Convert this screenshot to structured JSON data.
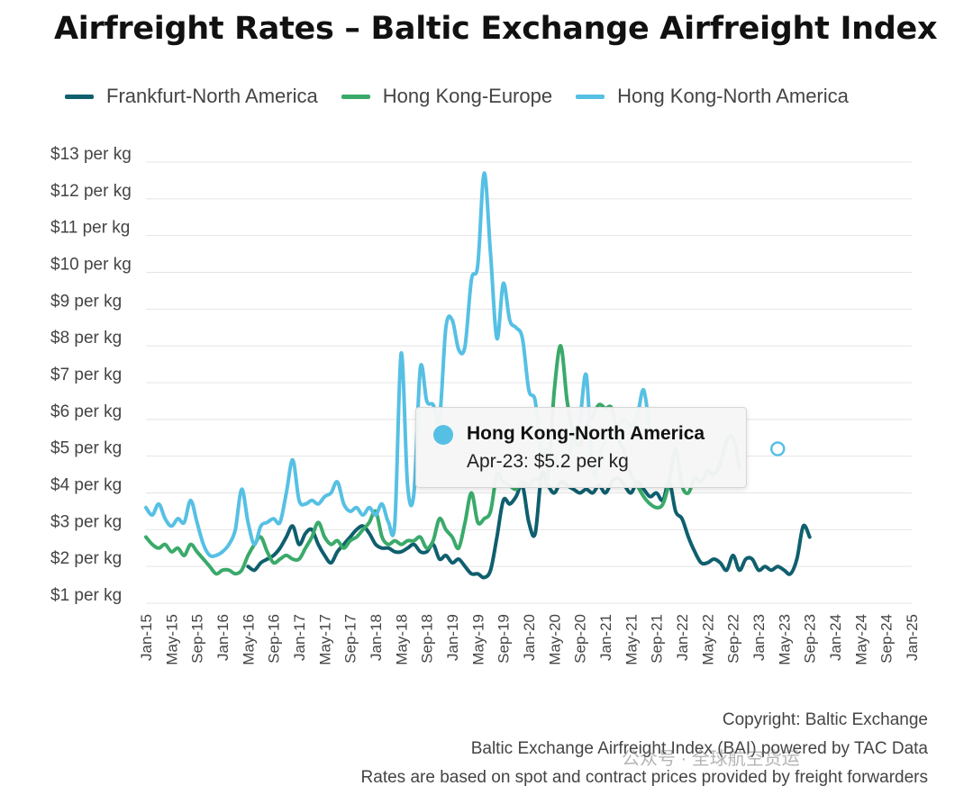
{
  "chart_data": {
    "type": "line",
    "title": "Airfreight Rates – Baltic Exchange Airfreight Index",
    "xlabel": "",
    "ylabel": "",
    "ylim": [
      1,
      13
    ],
    "y_tick_labels": [
      "$1 per kg",
      "$2 per kg",
      "$3 per kg",
      "$4 per kg",
      "$5 per kg",
      "$6 per kg",
      "$7 per kg",
      "$8 per kg",
      "$9 per kg",
      "$10 per kg",
      "$11 per kg",
      "$12 per kg",
      "$13 per kg"
    ],
    "x_tick_labels": [
      "Jan-15",
      "May-15",
      "Sep-15",
      "Jan-16",
      "May-16",
      "Sep-16",
      "Jan-17",
      "May-17",
      "Sep-17",
      "Jan-18",
      "May-18",
      "Sep-18",
      "Jan-19",
      "May-19",
      "Sep-19",
      "Jan-20",
      "May-20",
      "Sep-20",
      "Jan-21",
      "May-21",
      "Sep-21",
      "Jan-22",
      "May-22",
      "Sep-22",
      "Jan-23",
      "May-23",
      "Sep-23",
      "Jan-24",
      "May-24",
      "Sep-24",
      "Jan-25"
    ],
    "grid": true,
    "legend_position": "top",
    "series": [
      {
        "name": "Frankfurt-North America",
        "color": "#0f5f6e",
        "values": [
          [
            16,
            2.0
          ],
          [
            17,
            1.9
          ],
          [
            18,
            2.1
          ],
          [
            19,
            2.2
          ],
          [
            20,
            2.3
          ],
          [
            21,
            2.5
          ],
          [
            22,
            2.8
          ],
          [
            23,
            3.1
          ],
          [
            24,
            2.6
          ],
          [
            25,
            2.9
          ],
          [
            26,
            3.0
          ],
          [
            27,
            2.6
          ],
          [
            28,
            2.3
          ],
          [
            29,
            2.1
          ],
          [
            30,
            2.4
          ],
          [
            31,
            2.6
          ],
          [
            32,
            2.8
          ],
          [
            33,
            3.0
          ],
          [
            34,
            3.1
          ],
          [
            35,
            2.9
          ],
          [
            36,
            2.6
          ],
          [
            37,
            2.5
          ],
          [
            38,
            2.5
          ],
          [
            39,
            2.4
          ],
          [
            40,
            2.4
          ],
          [
            41,
            2.5
          ],
          [
            42,
            2.6
          ],
          [
            43,
            2.4
          ],
          [
            44,
            2.4
          ],
          [
            45,
            2.6
          ],
          [
            46,
            2.2
          ],
          [
            47,
            2.3
          ],
          [
            48,
            2.1
          ],
          [
            49,
            2.2
          ],
          [
            50,
            2.0
          ],
          [
            51,
            1.8
          ],
          [
            52,
            1.8
          ],
          [
            53,
            1.7
          ],
          [
            54,
            1.9
          ],
          [
            55,
            2.8
          ],
          [
            56,
            3.8
          ],
          [
            57,
            3.7
          ],
          [
            58,
            3.9
          ],
          [
            59,
            4.2
          ],
          [
            60,
            3.2
          ],
          [
            61,
            2.9
          ],
          [
            62,
            4.5
          ],
          [
            63,
            4.2
          ],
          [
            64,
            4.0
          ],
          [
            65,
            4.3
          ],
          [
            66,
            4.2
          ],
          [
            67,
            4.1
          ],
          [
            68,
            4.0
          ],
          [
            69,
            4.1
          ],
          [
            70,
            4.0
          ],
          [
            71,
            4.2
          ],
          [
            72,
            4.0
          ],
          [
            73,
            4.3
          ],
          [
            74,
            4.4
          ],
          [
            75,
            4.2
          ],
          [
            76,
            4.0
          ],
          [
            77,
            4.3
          ],
          [
            78,
            4.1
          ],
          [
            79,
            3.9
          ],
          [
            80,
            4.0
          ],
          [
            81,
            3.8
          ],
          [
            82,
            4.3
          ],
          [
            83,
            3.5
          ],
          [
            84,
            3.3
          ],
          [
            85,
            2.8
          ],
          [
            86,
            2.4
          ],
          [
            87,
            2.1
          ],
          [
            88,
            2.1
          ],
          [
            89,
            2.2
          ],
          [
            90,
            2.1
          ],
          [
            91,
            1.9
          ],
          [
            92,
            2.3
          ],
          [
            93,
            1.9
          ],
          [
            94,
            2.2
          ],
          [
            95,
            2.2
          ],
          [
            96,
            1.9
          ],
          [
            97,
            2.0
          ],
          [
            98,
            1.9
          ],
          [
            99,
            2.0
          ],
          [
            100,
            1.9
          ],
          [
            101,
            1.8
          ],
          [
            102,
            2.2
          ],
          [
            103,
            3.1
          ],
          [
            104,
            2.8
          ]
        ]
      },
      {
        "name": "Hong Kong-Europe",
        "color": "#3aaa6a",
        "values": [
          [
            0,
            2.8
          ],
          [
            1,
            2.6
          ],
          [
            2,
            2.5
          ],
          [
            3,
            2.6
          ],
          [
            4,
            2.4
          ],
          [
            5,
            2.5
          ],
          [
            6,
            2.3
          ],
          [
            7,
            2.6
          ],
          [
            8,
            2.4
          ],
          [
            9,
            2.2
          ],
          [
            10,
            2.0
          ],
          [
            11,
            1.8
          ],
          [
            12,
            1.9
          ],
          [
            13,
            1.9
          ],
          [
            14,
            1.8
          ],
          [
            15,
            1.9
          ],
          [
            16,
            2.3
          ],
          [
            17,
            2.6
          ],
          [
            18,
            2.8
          ],
          [
            19,
            2.4
          ],
          [
            20,
            2.1
          ],
          [
            21,
            2.2
          ],
          [
            22,
            2.3
          ],
          [
            23,
            2.2
          ],
          [
            24,
            2.2
          ],
          [
            25,
            2.5
          ],
          [
            26,
            2.8
          ],
          [
            27,
            3.2
          ],
          [
            28,
            2.8
          ],
          [
            29,
            2.6
          ],
          [
            30,
            2.7
          ],
          [
            31,
            2.5
          ],
          [
            32,
            2.7
          ],
          [
            33,
            2.8
          ],
          [
            34,
            3.0
          ],
          [
            35,
            3.2
          ],
          [
            36,
            3.5
          ],
          [
            37,
            2.8
          ],
          [
            38,
            2.6
          ],
          [
            39,
            2.7
          ],
          [
            40,
            2.6
          ],
          [
            41,
            2.7
          ],
          [
            42,
            2.7
          ],
          [
            43,
            2.8
          ],
          [
            44,
            2.5
          ],
          [
            45,
            2.7
          ],
          [
            46,
            3.3
          ],
          [
            47,
            3.0
          ],
          [
            48,
            2.8
          ],
          [
            49,
            2.5
          ],
          [
            50,
            3.2
          ],
          [
            51,
            4.0
          ],
          [
            52,
            3.2
          ],
          [
            53,
            3.3
          ],
          [
            54,
            3.5
          ],
          [
            55,
            4.5
          ],
          [
            56,
            4.3
          ],
          [
            57,
            4.2
          ],
          [
            58,
            4.1
          ],
          [
            59,
            4.3
          ],
          [
            60,
            4.2
          ],
          [
            61,
            4.4
          ],
          [
            62,
            4.3
          ],
          [
            63,
            4.5
          ],
          [
            64,
            6.8
          ],
          [
            65,
            8.0
          ],
          [
            66,
            6.5
          ],
          [
            67,
            5.6
          ],
          [
            68,
            5.3
          ],
          [
            69,
            5.8
          ],
          [
            70,
            6.1
          ],
          [
            71,
            6.4
          ],
          [
            72,
            6.3
          ],
          [
            73,
            6.3
          ],
          [
            74,
            5.5
          ],
          [
            75,
            5.1
          ],
          [
            76,
            4.5
          ],
          [
            77,
            4.2
          ],
          [
            78,
            3.9
          ],
          [
            79,
            3.7
          ],
          [
            80,
            3.6
          ],
          [
            81,
            3.7
          ],
          [
            82,
            4.3
          ],
          [
            83,
            5.2
          ],
          [
            84,
            4.2
          ],
          [
            85,
            4.0
          ],
          [
            86,
            4.4
          ],
          [
            87,
            4.3
          ],
          [
            88,
            4.6
          ],
          [
            89,
            4.5
          ],
          [
            90,
            4.8
          ],
          [
            91,
            5.4
          ],
          [
            92,
            5.5
          ],
          [
            93,
            4.7
          ]
        ]
      },
      {
        "name": "Hong Kong-North America",
        "color": "#56c0e4",
        "values": [
          [
            0,
            3.6
          ],
          [
            1,
            3.4
          ],
          [
            2,
            3.7
          ],
          [
            3,
            3.3
          ],
          [
            4,
            3.1
          ],
          [
            5,
            3.3
          ],
          [
            6,
            3.2
          ],
          [
            7,
            3.8
          ],
          [
            8,
            3.2
          ],
          [
            9,
            2.6
          ],
          [
            10,
            2.3
          ],
          [
            11,
            2.3
          ],
          [
            12,
            2.4
          ],
          [
            13,
            2.6
          ],
          [
            14,
            3.0
          ],
          [
            15,
            4.1
          ],
          [
            16,
            3.2
          ],
          [
            17,
            2.6
          ],
          [
            18,
            3.1
          ],
          [
            19,
            3.2
          ],
          [
            20,
            3.3
          ],
          [
            21,
            3.2
          ],
          [
            22,
            4.0
          ],
          [
            23,
            4.9
          ],
          [
            24,
            3.8
          ],
          [
            25,
            3.7
          ],
          [
            26,
            3.8
          ],
          [
            27,
            3.7
          ],
          [
            28,
            3.9
          ],
          [
            29,
            4.0
          ],
          [
            30,
            4.3
          ],
          [
            31,
            3.7
          ],
          [
            32,
            3.5
          ],
          [
            33,
            3.6
          ],
          [
            34,
            3.4
          ],
          [
            35,
            3.6
          ],
          [
            36,
            3.4
          ],
          [
            37,
            3.7
          ],
          [
            38,
            3.2
          ],
          [
            39,
            3.2
          ],
          [
            40,
            7.8
          ],
          [
            41,
            4.2
          ],
          [
            42,
            4.0
          ],
          [
            43,
            7.4
          ],
          [
            44,
            6.5
          ],
          [
            45,
            6.4
          ],
          [
            46,
            6.0
          ],
          [
            47,
            8.5
          ],
          [
            48,
            8.7
          ],
          [
            49,
            7.9
          ],
          [
            50,
            8.0
          ],
          [
            51,
            9.8
          ],
          [
            52,
            10.2
          ],
          [
            53,
            12.7
          ],
          [
            54,
            10.5
          ],
          [
            55,
            8.2
          ],
          [
            56,
            9.7
          ],
          [
            57,
            8.7
          ],
          [
            58,
            8.5
          ],
          [
            59,
            8.2
          ],
          [
            60,
            6.8
          ],
          [
            61,
            6.5
          ],
          [
            62,
            5.0
          ],
          [
            63,
            5.2
          ],
          [
            64,
            5.0
          ],
          [
            65,
            4.7
          ],
          [
            66,
            4.9
          ],
          [
            67,
            5.5
          ],
          [
            68,
            6.0
          ],
          [
            69,
            7.2
          ],
          [
            70,
            4.6
          ],
          [
            71,
            4.9
          ],
          [
            72,
            5.5
          ],
          [
            73,
            5.6
          ],
          [
            74,
            5.8
          ],
          [
            75,
            6.0
          ],
          [
            76,
            5.8
          ],
          [
            77,
            6.1
          ],
          [
            78,
            6.8
          ],
          [
            79,
            5.6
          ]
        ]
      }
    ]
  },
  "tooltip": {
    "series": "Hong Kong-North America",
    "label": "Apr-23: $5.2 per kg",
    "color": "#56c0e4"
  },
  "credits": {
    "line1": "Copyright: Baltic Exchange",
    "line2": "Baltic Exchange Airfreight Index (BAI) powered by TAC Data",
    "line3": "Rates are based on spot and contract prices provided by freight forwarders"
  },
  "watermark": "公众号 · 全球航空货运"
}
